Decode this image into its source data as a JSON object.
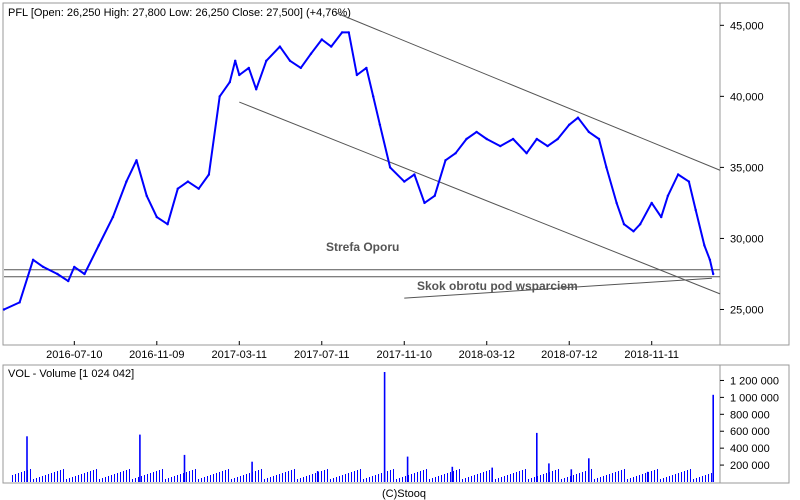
{
  "colors": {
    "price": "#0000ff",
    "volume": "#0000ff",
    "lines": "#555555",
    "frame": "#999999",
    "grid": "#d0d0d0"
  },
  "header": {
    "price": "PFL [Open: 26,250  High: 27,800  Low: 26,250  Close: 27,500] (+4,76%)",
    "volume": "VOL - Volume [1 024 042]"
  },
  "annotations": {
    "support_zone": "Strefa Oporu",
    "breakout": "Skok obrotu pod wsparciem"
  },
  "credit": "(C)Stooq",
  "chart_data": [
    {
      "type": "line",
      "series_name": "PFL",
      "x_ticks": [
        "2016-07-10",
        "2016-11-09",
        "2017-03-11",
        "2017-07-11",
        "2017-11-10",
        "2018-03-12",
        "2018-07-12",
        "2018-11-11"
      ],
      "y_ticks": [
        "25,000",
        "30,000",
        "35,000",
        "40,000",
        "45,000"
      ],
      "ylim": [
        22500,
        46500
      ],
      "x_range": [
        "2016-03-28",
        "2019-02-20"
      ],
      "grid": false,
      "close": {
        "x": [
          "2016-03-28",
          "2016-04-20",
          "2016-05-10",
          "2016-05-25",
          "2016-06-15",
          "2016-07-01",
          "2016-07-10",
          "2016-07-25",
          "2016-08-15",
          "2016-09-05",
          "2016-09-25",
          "2016-10-10",
          "2016-10-25",
          "2016-11-09",
          "2016-11-25",
          "2016-12-10",
          "2016-12-25",
          "2017-01-10",
          "2017-01-25",
          "2017-02-10",
          "2017-02-25",
          "2017-03-05",
          "2017-03-11",
          "2017-03-25",
          "2017-04-05",
          "2017-04-20",
          "2017-05-10",
          "2017-05-25",
          "2017-06-10",
          "2017-06-25",
          "2017-07-11",
          "2017-07-25",
          "2017-08-10",
          "2017-08-20",
          "2017-09-01",
          "2017-09-15",
          "2017-09-25",
          "2017-10-05",
          "2017-10-20",
          "2017-11-10",
          "2017-11-25",
          "2017-12-10",
          "2017-12-25",
          "2018-01-10",
          "2018-01-25",
          "2018-02-10",
          "2018-02-25",
          "2018-03-12",
          "2018-04-01",
          "2018-04-20",
          "2018-05-10",
          "2018-05-25",
          "2018-06-10",
          "2018-06-25",
          "2018-07-12",
          "2018-07-25",
          "2018-08-10",
          "2018-08-25",
          "2018-09-05",
          "2018-09-20",
          "2018-10-01",
          "2018-10-15",
          "2018-10-25",
          "2018-11-11",
          "2018-11-25",
          "2018-12-05",
          "2018-12-20",
          "2019-01-05",
          "2019-01-15",
          "2019-01-28",
          "2019-02-05",
          "2019-02-10"
        ],
        "y": [
          25000,
          25500,
          28500,
          28000,
          27500,
          27000,
          28000,
          27500,
          29500,
          31500,
          34000,
          35500,
          33000,
          31500,
          31000,
          33500,
          34000,
          33500,
          34500,
          40000,
          41000,
          42500,
          41500,
          42000,
          40500,
          42500,
          43500,
          42500,
          42000,
          43000,
          44000,
          43500,
          44500,
          44500,
          41500,
          42000,
          40000,
          38000,
          35000,
          34000,
          34500,
          32500,
          33000,
          35500,
          36000,
          37000,
          37500,
          37000,
          36500,
          37000,
          36000,
          37000,
          36500,
          37000,
          38000,
          38500,
          37500,
          37000,
          35000,
          32500,
          31000,
          30500,
          31000,
          32500,
          31500,
          33000,
          34500,
          34000,
          32000,
          29500,
          28500,
          27500
        ]
      },
      "lines": {
        "support_upper": 27800,
        "support_lower": 27300,
        "channel_upper": {
          "x": [
            "2017-07-31",
            "2019-02-20"
          ],
          "y": [
            45900,
            34800
          ]
        },
        "channel_lower": {
          "x": [
            "2017-03-11",
            "2019-02-20"
          ],
          "y": [
            39600,
            26100
          ]
        },
        "breakout_line": {
          "x": [
            "2017-11-10",
            "2019-02-08"
          ],
          "y": [
            25800,
            27200
          ]
        }
      }
    },
    {
      "type": "bar",
      "series_name": "VOL",
      "y_ticks": [
        "200 000",
        "400 000",
        "600 000",
        "800 000",
        "1 000 000",
        "1 200 000"
      ],
      "ylim": [
        0,
        1300000
      ],
      "spikes": {
        "x": [
          "2016-05-01",
          "2016-10-15",
          "2016-12-20",
          "2017-03-30",
          "2017-07-05",
          "2017-10-12",
          "2017-11-15",
          "2018-01-20",
          "2018-03-20",
          "2018-05-25",
          "2018-06-12",
          "2018-07-15",
          "2018-08-10",
          "2018-11-05",
          "2019-02-10"
        ],
        "values": [
          540000,
          560000,
          320000,
          240000,
          130000,
          1300000,
          300000,
          180000,
          170000,
          580000,
          220000,
          150000,
          280000,
          120000,
          1030000
        ]
      }
    }
  ]
}
